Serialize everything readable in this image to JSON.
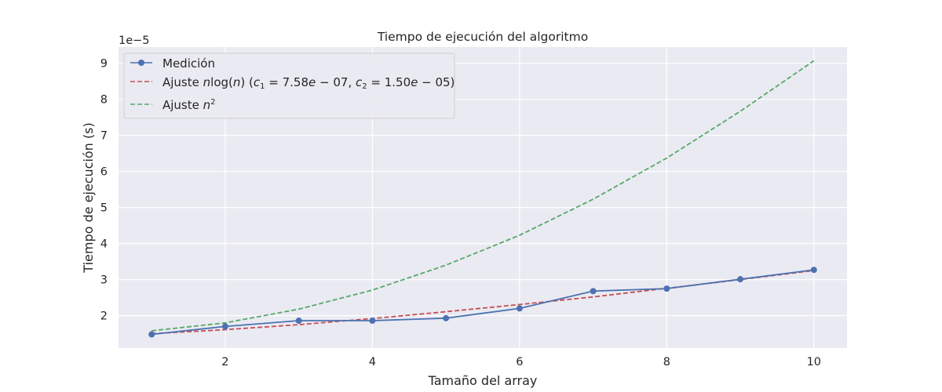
{
  "chart_data": {
    "type": "line",
    "title": "Tiempo de ejecución del algoritmo",
    "xlabel": "Tamaño del array",
    "ylabel": "Tiempo de ejecución (s)",
    "y_offset_label": "1e−5",
    "xlim": [
      0.55,
      10.45
    ],
    "ylim": [
      1.1,
      9.45
    ],
    "x_ticks": [
      2,
      4,
      6,
      8,
      10
    ],
    "y_ticks": [
      2,
      3,
      4,
      5,
      6,
      7,
      8,
      9
    ],
    "grid": true,
    "legend_position": "top-left",
    "x": [
      1,
      2,
      3,
      4,
      5,
      6,
      7,
      8,
      9,
      10
    ],
    "series": [
      {
        "name": "Medición",
        "color": "#4c72b0",
        "style": "solid-markers",
        "values": [
          1.48,
          1.7,
          1.86,
          1.86,
          1.93,
          2.2,
          2.68,
          2.75,
          3.01,
          3.27
        ]
      },
      {
        "name": "Ajuste nlog(n) (c1 = 7.58e − 07, c2 = 1.50e − 05)",
        "color": "#c44e52",
        "style": "dashed",
        "values": [
          1.5,
          1.61,
          1.75,
          1.92,
          2.11,
          2.31,
          2.52,
          2.76,
          3.0,
          3.25
        ]
      },
      {
        "name": "Ajuste n2",
        "color": "#55a868",
        "style": "dashed",
        "values": [
          1.58,
          1.8,
          2.18,
          2.71,
          3.4,
          4.23,
          5.23,
          6.37,
          7.67,
          9.07
        ]
      }
    ]
  }
}
